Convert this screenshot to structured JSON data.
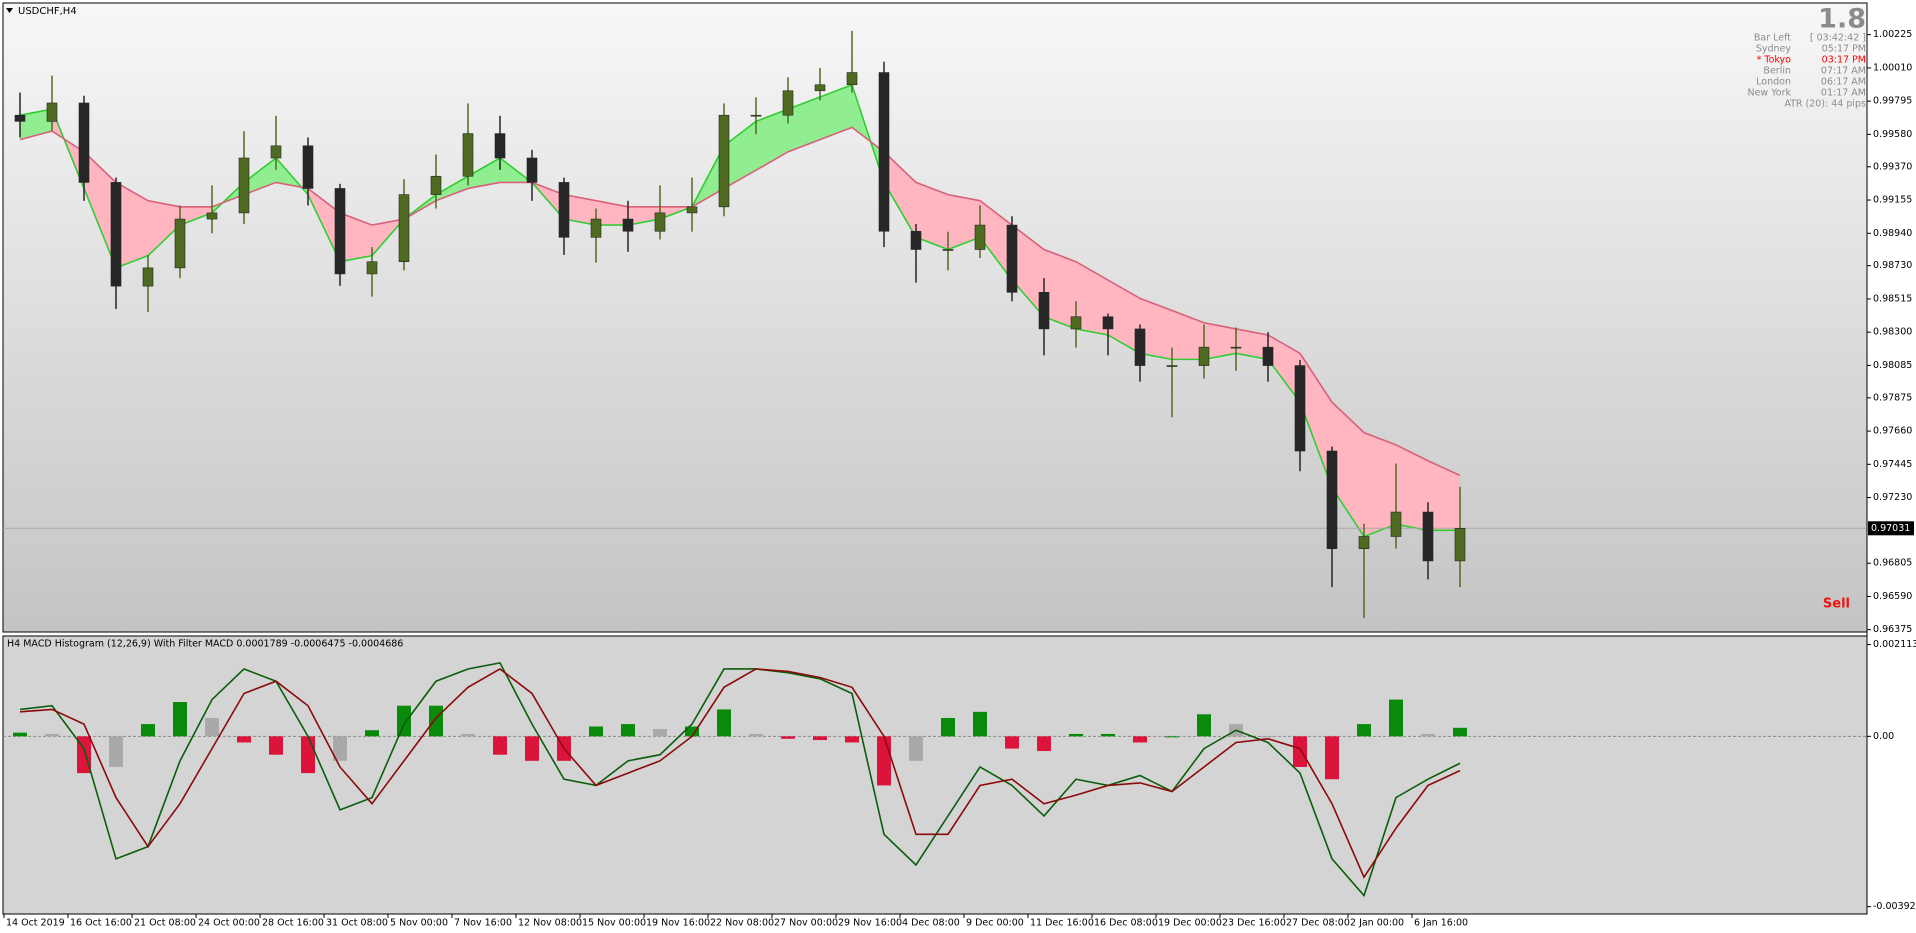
{
  "chart_data": [
    {
      "type": "candlestick",
      "title": "USDCHF,H4",
      "open": [
        0.99704,
        0.99664,
        0.99783,
        0.99269,
        0.98598,
        0.98716,
        0.99032,
        0.99072,
        0.99427,
        0.99506,
        0.9923,
        0.98677,
        0.98756,
        0.9919,
        0.99309,
        0.99585,
        0.99427,
        0.99269,
        0.98914,
        0.99032,
        0.98953,
        0.99072,
        0.99111,
        0.99704,
        0.99704,
        0.99862,
        0.99901,
        0.9998,
        0.98953,
        0.98835,
        0.98835,
        0.98993,
        0.98558,
        0.98321,
        0.984,
        0.98321,
        0.98084,
        0.98084,
        0.98203,
        0.98203,
        0.98084,
        0.97531,
        0.96899,
        0.96978,
        0.97136,
        0.9682
      ],
      "high": [
        0.9985,
        0.9996,
        0.9983,
        0.993,
        0.988,
        0.9912,
        0.9925,
        0.996,
        0.997,
        0.9956,
        0.9926,
        0.9885,
        0.9929,
        0.9945,
        0.9978,
        0.997,
        0.9948,
        0.993,
        0.991,
        0.9915,
        0.9925,
        0.993,
        0.9978,
        0.9982,
        0.9995,
        1.0001,
        1.0025,
        1.0005,
        0.99,
        0.9895,
        0.9912,
        0.9905,
        0.9865,
        0.985,
        0.9842,
        0.9835,
        0.982,
        0.9835,
        0.9833,
        0.983,
        0.9812,
        0.9756,
        0.9706,
        0.9745,
        0.972,
        0.973
      ],
      "low": [
        0.9956,
        0.996,
        0.9915,
        0.9845,
        0.9843,
        0.9865,
        0.9894,
        0.99,
        0.9935,
        0.9912,
        0.986,
        0.9853,
        0.987,
        0.991,
        0.9925,
        0.9935,
        0.9915,
        0.988,
        0.9875,
        0.9882,
        0.989,
        0.9895,
        0.9905,
        0.9958,
        0.9965,
        0.998,
        0.9985,
        0.9885,
        0.9862,
        0.987,
        0.9878,
        0.985,
        0.9815,
        0.982,
        0.9815,
        0.9798,
        0.9775,
        0.98,
        0.9805,
        0.9798,
        0.974,
        0.9665,
        0.9645,
        0.969,
        0.967,
        0.9665
      ],
      "close": [
        0.99664,
        0.99783,
        0.99269,
        0.98598,
        0.98716,
        0.99032,
        0.99072,
        0.99427,
        0.99506,
        0.9923,
        0.98677,
        0.98756,
        0.9919,
        0.99309,
        0.99585,
        0.99427,
        0.99269,
        0.98914,
        0.99032,
        0.98953,
        0.99072,
        0.99111,
        0.99704,
        0.99704,
        0.99862,
        0.99901,
        0.9998,
        0.98953,
        0.98835,
        0.98835,
        0.98993,
        0.98558,
        0.98321,
        0.984,
        0.98321,
        0.98084,
        0.98084,
        0.98203,
        0.98203,
        0.98084,
        0.97531,
        0.96899,
        0.96978,
        0.97136,
        0.9682,
        0.97031
      ],
      "colors": {
        "up": "#4f6b22",
        "down": "#262626"
      },
      "overlays": [
        {
          "color": "#32cd32",
          "values": [
            0.99704,
            0.99743,
            0.9923,
            0.98716,
            0.98795,
            0.98993,
            0.99072,
            0.99269,
            0.99427,
            0.9919,
            0.98756,
            0.98795,
            0.99032,
            0.9919,
            0.99309,
            0.99427,
            0.99269,
            0.99032,
            0.98993,
            0.98993,
            0.99032,
            0.99111,
            0.99506,
            0.99664,
            0.99743,
            0.99822,
            0.99901,
            0.99269,
            0.98914,
            0.98835,
            0.98914,
            0.98637,
            0.984,
            0.98321,
            0.98282,
            0.98163,
            0.98124,
            0.98124,
            0.98163,
            0.98124,
            0.97847,
            0.97294,
            0.96978,
            0.97057,
            0.97018,
            0.97018
          ]
        },
        {
          "color": "#d9607a",
          "values": [
            0.99546,
            0.99601,
            0.99467,
            0.99269,
            0.99151,
            0.99111,
            0.99111,
            0.9919,
            0.99269,
            0.9923,
            0.99072,
            0.98993,
            0.99032,
            0.99151,
            0.9923,
            0.99269,
            0.99269,
            0.9919,
            0.99151,
            0.99111,
            0.99111,
            0.99111,
            0.9923,
            0.99348,
            0.99467,
            0.99546,
            0.99625,
            0.99467,
            0.99269,
            0.9919,
            0.99151,
            0.98993,
            0.98835,
            0.98756,
            0.98637,
            0.98519,
            0.9844,
            0.98361,
            0.98321,
            0.98282,
            0.98163,
            0.97847,
            0.9765,
            0.97571,
            0.97468,
            0.97373
          ]
        }
      ],
      "fill_colors": {
        "above": "#90ee90",
        "below": "#ffb6c1"
      },
      "ylim": [
        0.9636,
        1.0043
      ],
      "yticks": [
        1.00225,
        {
          "value": 1.0001,
          "label": "1.00010"
        },
        0.99795,
        {
          "value": 0.9958,
          "label": "0.99580"
        },
        {
          "value": 0.9937,
          "label": "0.99370"
        },
        0.99155,
        {
          "value": 0.9894,
          "label": "0.98940"
        },
        {
          "value": 0.9873,
          "label": "0.98730"
        },
        0.98515,
        {
          "value": 0.983,
          "label": "0.98300"
        },
        0.98085,
        0.97875,
        {
          "value": 0.9766,
          "label": "0.97660"
        },
        0.97445,
        {
          "value": 0.9723,
          "label": "0.97230"
        },
        0.96805,
        {
          "value": 0.9659,
          "label": "0.96590"
        },
        0.96375
      ],
      "last_price": 0.97031,
      "info": {
        "version": "1.8",
        "rows": [
          {
            "label": "Bar Left",
            "value": "[ 03:42:42 ]",
            "color": "#8c8c8c"
          },
          {
            "label": "Sydney",
            "value": "05:17 PM",
            "color": "#8c8c8c"
          },
          {
            "label": "* Tokyo",
            "value": "03:17 PM",
            "color": "#ff0000"
          },
          {
            "label": "Berlin",
            "value": "07:17 AM",
            "color": "#8c8c8c"
          },
          {
            "label": "London",
            "value": "06:17 AM",
            "color": "#8c8c8c"
          },
          {
            "label": "New York",
            "value": "01:17 AM",
            "color": "#8c8c8c"
          }
        ],
        "atr": "ATR (20): 44 pips"
      },
      "signal": {
        "text": "Sell",
        "color": "#ee1111"
      }
    },
    {
      "type": "macd",
      "title": "H4 MACD Histogram (12,26,9) With Filter MACD 0.0001789 -0.0006475 -0.0004686",
      "categories": [
        "14 Oct 2019",
        null,
        "16 Oct 16:00",
        null,
        "21 Oct 08:00",
        null,
        "24 Oct 00:00",
        null,
        "28 Oct 16:00",
        null,
        "31 Oct 08:00",
        null,
        "5 Nov 00:00",
        null,
        "7 Nov 16:00",
        null,
        "12 Nov 08:00",
        null,
        "15 Nov 00:00",
        null,
        "19 Nov 16:00",
        null,
        "22 Nov 08:00",
        null,
        "27 Nov 00:00",
        null,
        "29 Nov 16:00",
        null,
        "4 Dec 08:00",
        null,
        "9 Dec 00:00",
        null,
        "11 Dec 16:00",
        null,
        "16 Dec 08:00",
        null,
        "19 Dec 00:00",
        null,
        "23 Dec 16:00",
        null,
        "27 Dec 08:00",
        null,
        "2 Jan 00:00",
        null,
        "6 Jan 16:00",
        null
      ],
      "values": [
        8.5e-05,
        5.6e-05,
        -0.000846,
        -0.000705,
        0.000282,
        0.00079,
        0.000423,
        -0.000141,
        -0.000423,
        -0.000846,
        -0.000564,
        0.000141,
        0.000705,
        0.000705,
        5.6e-05,
        -0.000423,
        -0.000564,
        -0.000564,
        0.000226,
        0.000282,
        0.000169,
        0.000226,
        0.00062,
        5.6e-05,
        -5.6e-05,
        -8.5e-05,
        -0.000141,
        -0.00113,
        -0.000564,
        0.000423,
        0.000564,
        -0.000282,
        -0.000338,
        5.6e-05,
        5.6e-05,
        -0.000141,
        0,
        0.000508,
        0.000282,
        0,
        -0.000705,
        -0.000987,
        0.000282,
        0.000846,
        5.6e-05,
        0.000197
      ],
      "colors": {
        "rise": "#0a8a0a",
        "fade": "#a9a9a9",
        "fall": "#dc143c"
      },
      "lines": [
        {
          "color": "#0b5e0b",
          "values": [
            0.00062,
            0.000705,
            -0.000282,
            -0.00282,
            -0.002538,
            -0.000564,
            0.000846,
            0.001551,
            0.001269,
            0,
            -0.001692,
            -0.00141,
            0.000282,
            0.001269,
            0.001551,
            0.001692,
            0.000282,
            -0.000987,
            -0.00113,
            -0.000564,
            -0.000423,
            0.000282,
            0.001551,
            0.001551,
            0.001466,
            0.001325,
            0.000987,
            -0.002256,
            -0.002961,
            -0.001833,
            -0.000705,
            -0.00113,
            -0.001833,
            -0.000987,
            -0.00113,
            -0.000902,
            -0.001269,
            -0.000282,
            0.000141,
            -0.000141,
            -0.000846,
            -0.00282,
            -0.003666,
            -0.00141,
            -0.000987,
            -0.00062
          ]
        },
        {
          "color": "#8b0a0a",
          "values": [
            0.000564,
            0.00062,
            0.000282,
            -0.00141,
            -0.002538,
            -0.001551,
            -0.000282,
            0.000987,
            0.001269,
            0.000705,
            -0.000705,
            -0.001551,
            -0.000564,
            0.000423,
            0.00113,
            0.001551,
            0.000987,
            -0.000282,
            -0.00113,
            -0.000846,
            -0.000564,
            0,
            0.00113,
            0.001551,
            0.001495,
            0.001354,
            0.00113,
            0,
            -0.002256,
            -0.002256,
            -0.00113,
            -0.000987,
            -0.001551,
            -0.001354,
            -0.00113,
            -0.001072,
            -0.001269,
            -0.000705,
            -0.000141,
            -5.6e-05,
            -0.000282,
            -0.001551,
            -0.003243,
            -0.002115,
            -0.00113,
            -0.00079
          ]
        }
      ],
      "zero_line": true,
      "ylim": [
        -0.00409,
        0.00231
      ],
      "yticks": [
        0.002113,
        {
          "value": 0,
          "label": "0.00"
        },
        -0.003921
      ]
    }
  ]
}
